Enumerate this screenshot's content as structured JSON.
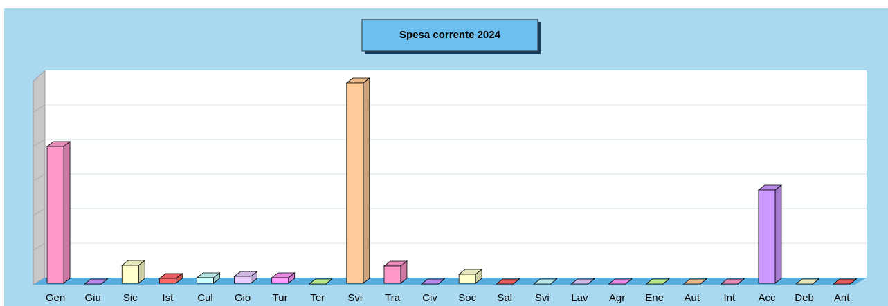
{
  "chart_data": {
    "type": "bar3d",
    "title": "Spesa corrente 2024",
    "categories": [
      "Gen",
      "Giu",
      "Sic",
      "Ist",
      "Cul",
      "Gio",
      "Tur",
      "Ter",
      "Svi",
      "Tra",
      "Civ",
      "Soc",
      "Sal",
      "Svi",
      "Lav",
      "Agr",
      "Ene",
      "Aut",
      "Int",
      "Acc",
      "Deb",
      "Ant"
    ],
    "values": [
      4.0,
      0.02,
      0.56,
      0.18,
      0.2,
      0.24,
      0.2,
      0.02,
      5.84,
      0.54,
      0.02,
      0.3,
      0.02,
      0.02,
      0.02,
      0.02,
      0.02,
      0.02,
      0.02,
      2.74,
      0.02,
      0.02
    ],
    "colors": [
      "#ff99cc",
      "#cc99ff",
      "#ffffcc",
      "#ff6666",
      "#ccffff",
      "#e6ccff",
      "#ff99ff",
      "#ccff99",
      "#ffcc99",
      "#ff99cc",
      "#cc99ff",
      "#ffffcc",
      "#ff6666",
      "#ccffff",
      "#e6ccff",
      "#ff99ff",
      "#ccff99",
      "#ffcc99",
      "#ff99cc",
      "#cc99ff",
      "#ffffcc",
      "#ff6666"
    ],
    "ylim": [
      0,
      6
    ],
    "yticks": [
      1,
      2,
      3,
      4,
      5
    ],
    "grid": true
  }
}
